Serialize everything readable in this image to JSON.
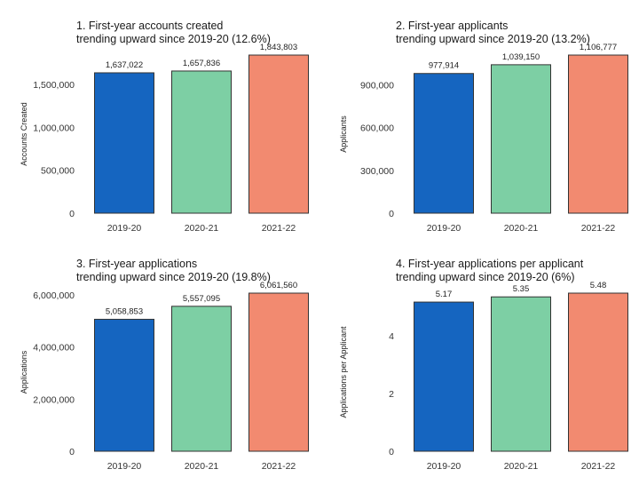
{
  "chart_data": [
    {
      "type": "bar",
      "title": "1. First-year accounts created",
      "subtitle": "trending upward since 2019-20 (12.6%)",
      "xlabel": "",
      "ylabel": "Accounts Created",
      "categories": [
        "2019-20",
        "2020-21",
        "2021-22"
      ],
      "values": [
        1637022,
        1657836,
        1843803
      ],
      "value_labels": [
        "1,637,022",
        "1,657,836",
        "1,843,803"
      ],
      "yticks": [
        0,
        500000,
        1000000,
        1500000
      ],
      "ytick_labels": [
        "0",
        "500,000",
        "1,000,000",
        "1,500,000"
      ],
      "ylim": [
        0,
        1843803
      ],
      "colors": [
        "#1565c0",
        "#7dcfa4",
        "#f28a70"
      ],
      "grid": false
    },
    {
      "type": "bar",
      "title": "2. First-year applicants",
      "subtitle": "trending upward since 2019-20 (13.2%)",
      "xlabel": "",
      "ylabel": "Applicants",
      "categories": [
        "2019-20",
        "2020-21",
        "2021-22"
      ],
      "values": [
        977914,
        1039150,
        1106777
      ],
      "value_labels": [
        "977,914",
        "1,039,150",
        "1,106,777"
      ],
      "yticks": [
        0,
        300000,
        600000,
        900000
      ],
      "ytick_labels": [
        "0",
        "300,000",
        "600,000",
        "900,000"
      ],
      "ylim": [
        0,
        1106777
      ],
      "colors": [
        "#1565c0",
        "#7dcfa4",
        "#f28a70"
      ],
      "grid": false
    },
    {
      "type": "bar",
      "title": "3. First-year applications",
      "subtitle": "trending upward since 2019-20 (19.8%)",
      "xlabel": "",
      "ylabel": "Applications",
      "categories": [
        "2019-20",
        "2020-21",
        "2021-22"
      ],
      "values": [
        5058853,
        5557095,
        6061560
      ],
      "value_labels": [
        "5,058,853",
        "5,557,095",
        "6,061,560"
      ],
      "yticks": [
        0,
        2000000,
        4000000,
        6000000
      ],
      "ytick_labels": [
        "0",
        "2,000,000",
        "4,000,000",
        "6,000,000"
      ],
      "ylim": [
        0,
        6061560
      ],
      "colors": [
        "#1565c0",
        "#7dcfa4",
        "#f28a70"
      ],
      "grid": false
    },
    {
      "type": "bar",
      "title": "4. First-year applications per applicant",
      "subtitle": "trending upward since 2019-20 (6%)",
      "xlabel": "",
      "ylabel": "Applications per Applicant",
      "categories": [
        "2019-20",
        "2020-21",
        "2021-22"
      ],
      "values": [
        5.17,
        5.35,
        5.48
      ],
      "value_labels": [
        "5.17",
        "5.35",
        "5.48"
      ],
      "yticks": [
        0,
        2,
        4
      ],
      "ytick_labels": [
        "0",
        "2",
        "4"
      ],
      "ylim": [
        0,
        5.48
      ],
      "colors": [
        "#1565c0",
        "#7dcfa4",
        "#f28a70"
      ],
      "grid": false
    }
  ]
}
